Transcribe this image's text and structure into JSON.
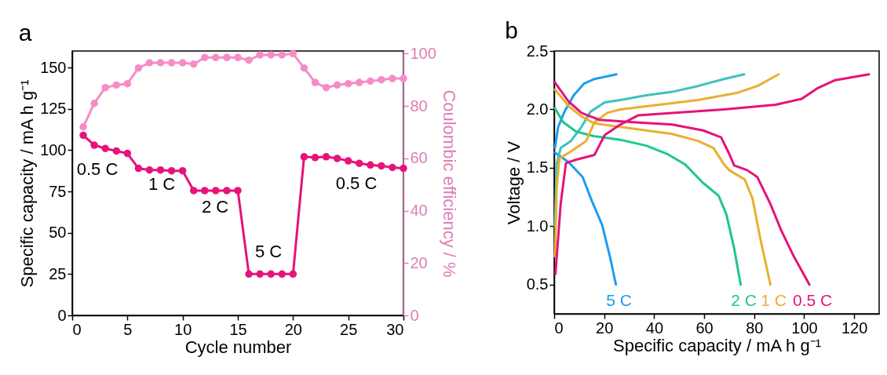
{
  "chart_data": [
    {
      "type": "line",
      "title": "a",
      "xlabel": "Cycle number",
      "ylabel": "Specific capacity / mA h g⁻¹",
      "y2label": "Coulombic efficiency / %",
      "marker": "circle",
      "xlim": [
        0,
        30
      ],
      "xticks": [
        0,
        5,
        10,
        15,
        20,
        25,
        30
      ],
      "ylim": [
        0,
        160
      ],
      "yticks": [
        0,
        25,
        50,
        75,
        100,
        125,
        150
      ],
      "y2lim": [
        0,
        101
      ],
      "y2ticks": [
        0,
        20,
        40,
        60,
        80,
        100
      ],
      "grid": false,
      "x": [
        1,
        2,
        3,
        4,
        5,
        6,
        7,
        8,
        9,
        10,
        11,
        12,
        13,
        14,
        15,
        16,
        17,
        18,
        19,
        20,
        21,
        22,
        23,
        24,
        25,
        26,
        27,
        28,
        29,
        30
      ],
      "series": [
        {
          "color": "#e5137a",
          "values": [
            109,
            103,
            101,
            99.5,
            98,
            89,
            88,
            88,
            87.5,
            87.5,
            75.5,
            75.5,
            75.5,
            75.5,
            75.5,
            25,
            25,
            25,
            25,
            25,
            96,
            95.5,
            96,
            95,
            93.5,
            92,
            91,
            90.5,
            89.5,
            89
          ]
        },
        {
          "color": "#f58cc8",
          "axis": "y2",
          "values": [
            72,
            81,
            87,
            88,
            88.5,
            94.5,
            96.5,
            96.5,
            96.5,
            96.5,
            96,
            98.5,
            98.5,
            98.5,
            98.5,
            97.5,
            99.5,
            99.5,
            99.5,
            100,
            94.5,
            89,
            87,
            88,
            88.5,
            89,
            89.5,
            90,
            90.5,
            90.5
          ]
        }
      ],
      "annotations": [
        "0.5 C",
        "1 C",
        "2 C",
        "5 C",
        "0.5 C"
      ]
    },
    {
      "type": "line",
      "title": "b",
      "xlabel": "Specific capacity / mA h g⁻¹",
      "ylabel": "Voltage / V",
      "marker": "none",
      "line_style": "solid",
      "xlim": [
        0,
        130
      ],
      "xticks": [
        0,
        20,
        40,
        60,
        80,
        100,
        120
      ],
      "ylim": [
        0.25,
        2.5
      ],
      "yticks": [
        0.5,
        {
          "value": 1,
          "label": "1.0"
        },
        1.5,
        {
          "value": 2,
          "label": "2.0"
        },
        2.5
      ],
      "grid": false,
      "series": [
        {
          "color": "#1e9cf0",
          "x": [
            0.3,
            1.6,
            4.1,
            7.8,
            11.9,
            16.1,
            24.9
          ],
          "values": [
            1.67,
            1.85,
            1.98,
            2.12,
            2.22,
            2.26,
            2.3
          ]
        },
        {
          "name": "5 C",
          "color": "#1e9cf0",
          "x": [
            0.3,
            5.7,
            11.4,
            15,
            19.2,
            22.3,
            24.7
          ],
          "values": [
            1.63,
            1.55,
            1.42,
            1.22,
            1.01,
            0.74,
            0.5
          ]
        },
        {
          "color": "#40c0c0",
          "x": [
            0.3,
            1,
            2.6,
            6.7,
            10.9,
            14.5,
            20.2,
            26.4,
            36.8,
            47.2,
            57.5,
            67.9,
            76
          ],
          "values": [
            1,
            1.53,
            1.67,
            1.73,
            1.85,
            1.98,
            2.06,
            2.08,
            2.12,
            2.15,
            2.2,
            2.26,
            2.3
          ]
        },
        {
          "name": "2 C",
          "color": "#1ec88a",
          "x": [
            0.3,
            3.6,
            8.8,
            16.1,
            26.4,
            36.8,
            45.1,
            52.3,
            59.6,
            65.8,
            68.9,
            72,
            74.6
          ],
          "values": [
            2.01,
            1.89,
            1.81,
            1.77,
            1.74,
            1.69,
            1.62,
            1.53,
            1.37,
            1.26,
            1.1,
            0.81,
            0.5
          ]
        },
        {
          "color": "#e8b030",
          "x": [
            0.3,
            1,
            2.1,
            6.7,
            12.8,
            16.1,
            21.2,
            26.4,
            42,
            57.5,
            73,
            81.3,
            89.8
          ],
          "values": [
            0.74,
            1.33,
            1.58,
            1.64,
            1.73,
            1.89,
            1.97,
            2,
            2.04,
            2.08,
            2.14,
            2.2,
            2.3
          ]
        },
        {
          "name": "1 C",
          "color": "#e8b030",
          "x": [
            0.3,
            5.7,
            10.9,
            16.1,
            26.4,
            36.8,
            47.2,
            57.5,
            63.7,
            67.9,
            70,
            76.2,
            79.3,
            82.4,
            86.5
          ],
          "values": [
            2.17,
            2.03,
            1.94,
            1.88,
            1.85,
            1.82,
            1.79,
            1.73,
            1.67,
            1.53,
            1.48,
            1.4,
            1.24,
            0.9,
            0.5
          ]
        },
        {
          "color": "#e5137a",
          "x": [
            0.5,
            2.6,
            4.7,
            8.8,
            16.1,
            20.2,
            26.4,
            33.7,
            47.2,
            67.9,
            88.6,
            99,
            105.2,
            112.4,
            125.9
          ],
          "values": [
            0.59,
            1.19,
            1.54,
            1.57,
            1.61,
            1.78,
            1.87,
            1.95,
            1.97,
            2,
            2.04,
            2.09,
            2.18,
            2.25,
            2.3
          ]
        },
        {
          "name": "0.5 C",
          "color": "#e5137a",
          "x": [
            0.3,
            5.7,
            10.9,
            18.1,
            31.6,
            47.2,
            59.6,
            66.8,
            70,
            72,
            77.2,
            81.3,
            86.5,
            90.7,
            95.9,
            102.1
          ],
          "values": [
            2.23,
            2.07,
            1.97,
            1.91,
            1.89,
            1.87,
            1.82,
            1.76,
            1.62,
            1.52,
            1.48,
            1.42,
            1.19,
            0.97,
            0.74,
            0.5
          ]
        }
      ]
    }
  ]
}
